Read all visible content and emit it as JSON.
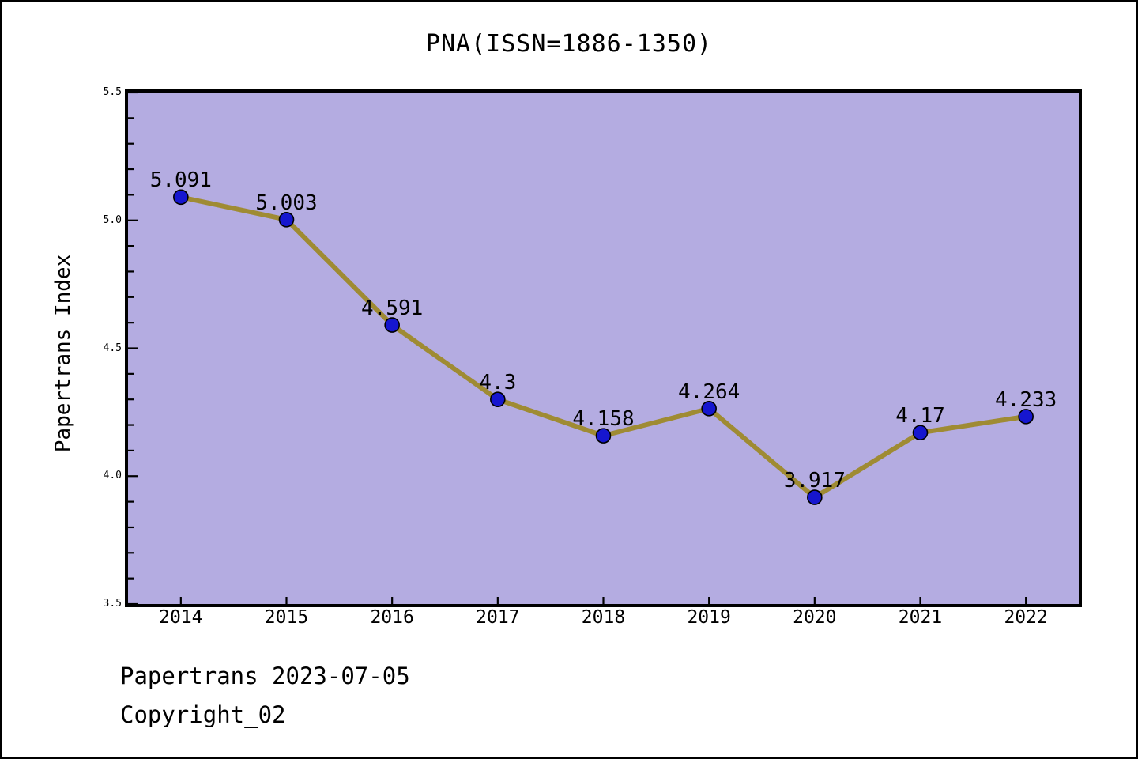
{
  "page": {
    "footer_line1": "Papertrans 2023-07-05",
    "footer_line2": "Copyright_02"
  },
  "colors": {
    "page_background": "#ffffff",
    "plot_background": "#b4ace1",
    "line": "#9f8b33",
    "marker_fill": "#1616cf",
    "marker_edge": "#000000",
    "axis": "#000000",
    "text": "#000000"
  },
  "chart_data": {
    "type": "line",
    "title": "PNA(ISSN=1886-1350)",
    "xlabel": "",
    "ylabel": "Papertrans Index",
    "categories": [
      2014,
      2015,
      2016,
      2017,
      2018,
      2019,
      2020,
      2021,
      2022
    ],
    "values": [
      5.091,
      5.003,
      4.591,
      4.3,
      4.158,
      4.264,
      3.917,
      4.17,
      4.233
    ],
    "point_labels": [
      "5.091",
      "5.003",
      "4.591",
      "4.3",
      "4.158",
      "4.264",
      "3.917",
      "4.17",
      "4.233"
    ],
    "x_tick_labels": [
      "2014",
      "2015",
      "2016",
      "2017",
      "2018",
      "2019",
      "2020",
      "2021",
      "2022"
    ],
    "y_major_ticks": [
      5.5,
      5.0,
      4.5,
      4.0,
      3.5
    ],
    "y_major_tick_labels": [
      "5.5",
      "5.0",
      "4.5",
      "4.0",
      "3.5"
    ],
    "y_minor_tick_step": 0.1,
    "xlim": [
      2013.5,
      2022.5
    ],
    "ylim": [
      3.5,
      5.5
    ],
    "grid": false,
    "legend": false
  }
}
